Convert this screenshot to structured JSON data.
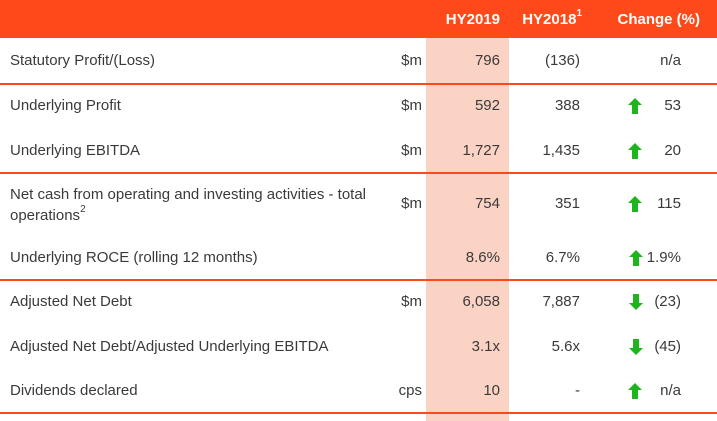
{
  "header": {
    "hy2019": "HY2019",
    "hy2018": "HY2018",
    "hy2018_note": "1",
    "change": "Change (%)"
  },
  "rows": [
    {
      "label": "Statutory Profit/(Loss)",
      "unit": "$m",
      "hy2019": "796",
      "hy2018": "(136)",
      "change": "n/a",
      "direction": "none"
    },
    {
      "label": "Underlying Profit",
      "unit": "$m",
      "hy2019": "592",
      "hy2018": "388",
      "change": "53",
      "direction": "up"
    },
    {
      "label": "Underlying EBITDA",
      "unit": "$m",
      "hy2019": "1,727",
      "hy2018": "1,435",
      "change": "20",
      "direction": "up"
    },
    {
      "label": "Net cash from operating and investing activities - total operations",
      "label_note": "2",
      "unit": "$m",
      "hy2019": "754",
      "hy2018": "351",
      "change": "115",
      "direction": "up"
    },
    {
      "label": "Underlying ROCE (rolling 12 months)",
      "unit": "",
      "hy2019": "8.6%",
      "hy2018": "6.7%",
      "change": "1.9%",
      "direction": "up"
    },
    {
      "label": "Adjusted Net Debt",
      "unit": "$m",
      "hy2019": "6,058",
      "hy2018": "7,887",
      "change": "(23)",
      "direction": "down"
    },
    {
      "label": "Adjusted Net Debt/Adjusted Underlying EBITDA",
      "unit": "",
      "hy2019": "3.1x",
      "hy2018": "5.6x",
      "change": "(45)",
      "direction": "down"
    },
    {
      "label": "Dividends declared",
      "unit": "cps",
      "hy2019": "10",
      "hy2018": "-",
      "change": "n/a",
      "direction": "up"
    }
  ],
  "colors": {
    "accent": "#fe4a1a",
    "highlight": "#fbd3c4",
    "up_arrow": "#1db41d",
    "down_arrow": "#1db41d"
  }
}
